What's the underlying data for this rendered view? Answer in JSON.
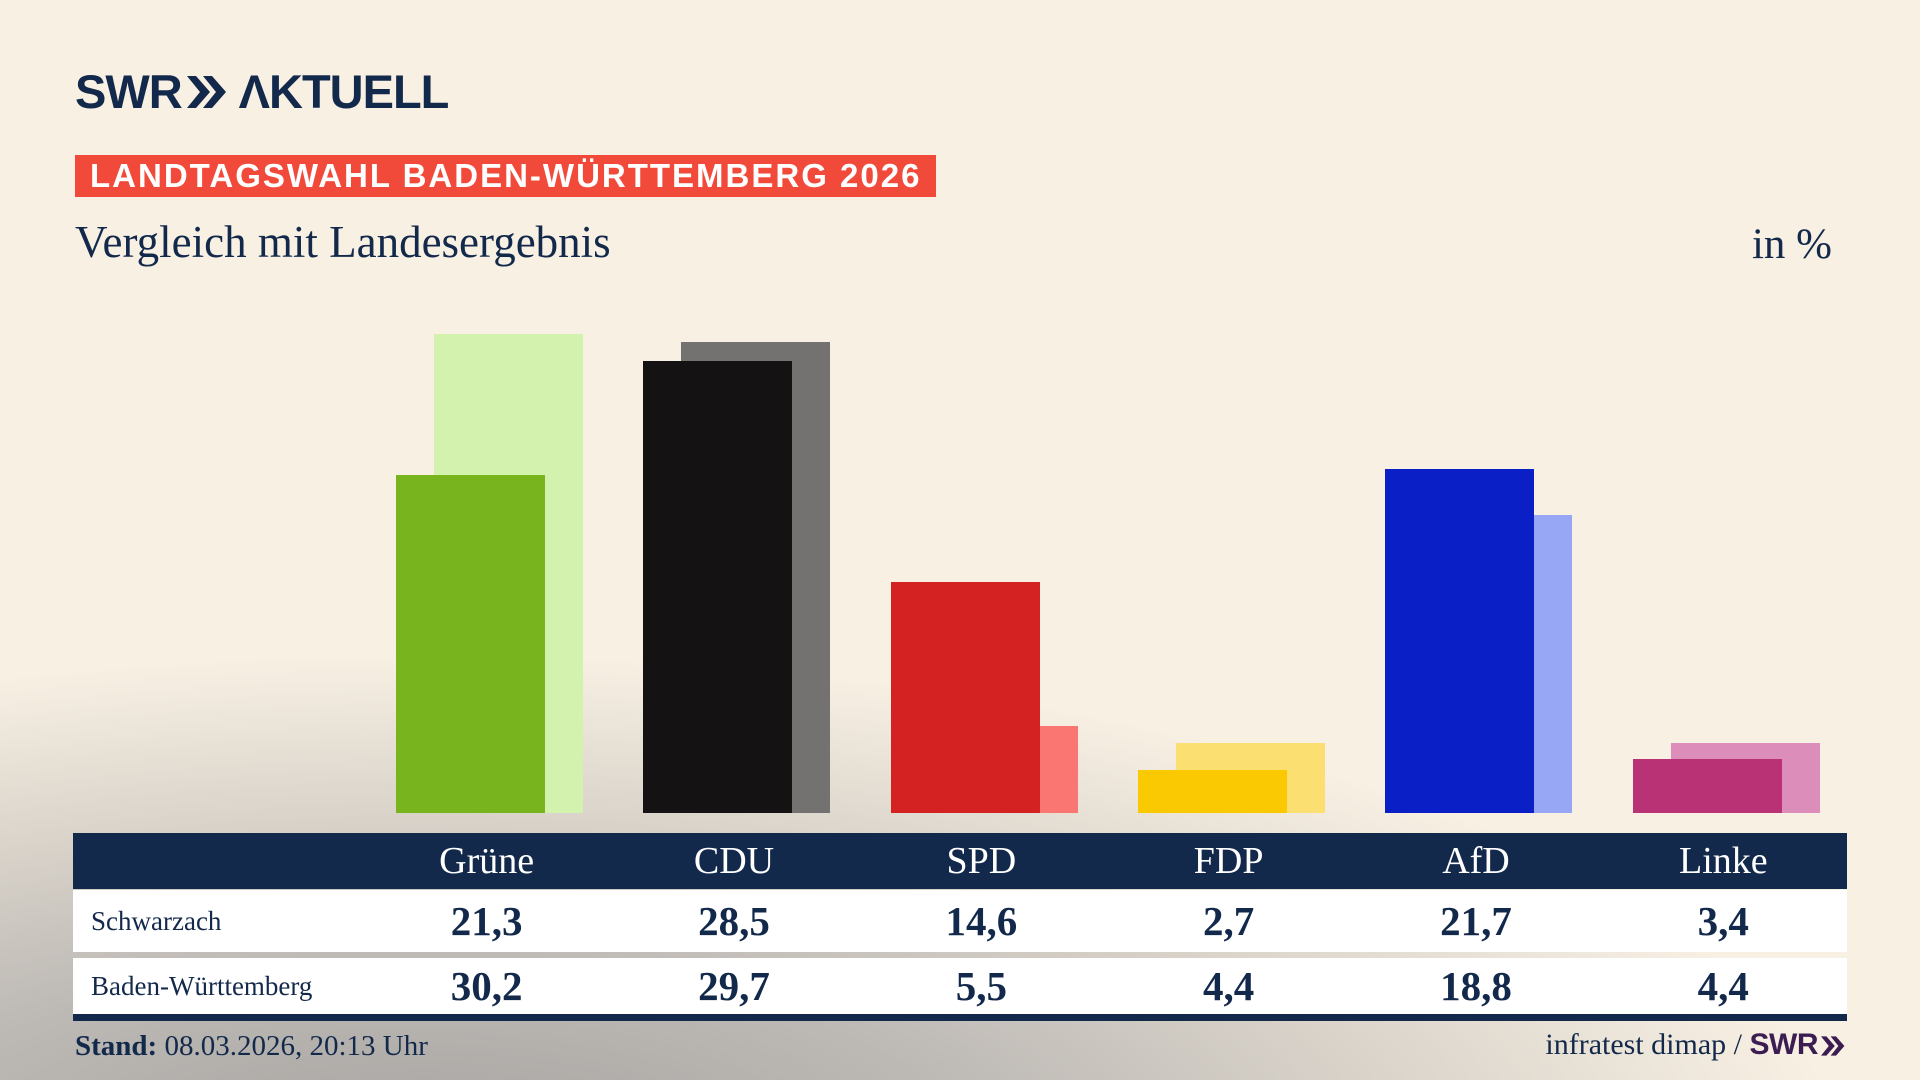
{
  "header": {
    "logo_swr": "SWR",
    "logo_aktuell": "ΛKTUELL",
    "badge": "LANDTAGSWAHL BADEN-WÜRTTEMBERG 2026",
    "title": "Vergleich mit Landesergebnis",
    "unit_label": "in %"
  },
  "chart_data": {
    "type": "bar",
    "title": "Vergleich mit Landesergebnis",
    "ylabel": "in %",
    "ylim": [
      0,
      32
    ],
    "grid": false,
    "legend_position": "table-below",
    "categories": [
      "Grüne",
      "CDU",
      "SPD",
      "FDP",
      "AfD",
      "Linke"
    ],
    "series": [
      {
        "name": "Schwarzach",
        "values": [
          21.3,
          28.5,
          14.6,
          2.7,
          21.7,
          3.4
        ],
        "display_values": [
          "21,3",
          "28,5",
          "14,6",
          "2,7",
          "21,7",
          "3,4"
        ],
        "colors": [
          "#78b41e",
          "#141212",
          "#d42222",
          "#fbc902",
          "#0b1fc6",
          "#ba3276"
        ]
      },
      {
        "name": "Baden-Württemberg",
        "values": [
          30.2,
          29.7,
          5.5,
          4.4,
          18.8,
          4.4
        ],
        "display_values": [
          "30,2",
          "29,7",
          "5,5",
          "4,4",
          "18,8",
          "4,4"
        ],
        "colors": [
          "#d3f2ae",
          "#747171",
          "#f97672",
          "#fbdf70",
          "#97a7f6",
          "#dd8db9"
        ]
      }
    ]
  },
  "footer": {
    "stand_label": "Stand:",
    "stand_value": " 08.03.2026, 20:13 Uhr",
    "source_text": "infratest dimap / ",
    "source_brand": "SWR"
  },
  "colors": {
    "background_cream": "#f8f0e3",
    "background_shadow": "#a5a29f",
    "navy": "#12294b",
    "badge_red": "#f24a3a",
    "brand_purple": "#3c1d52",
    "row_white": "#ffffff"
  }
}
